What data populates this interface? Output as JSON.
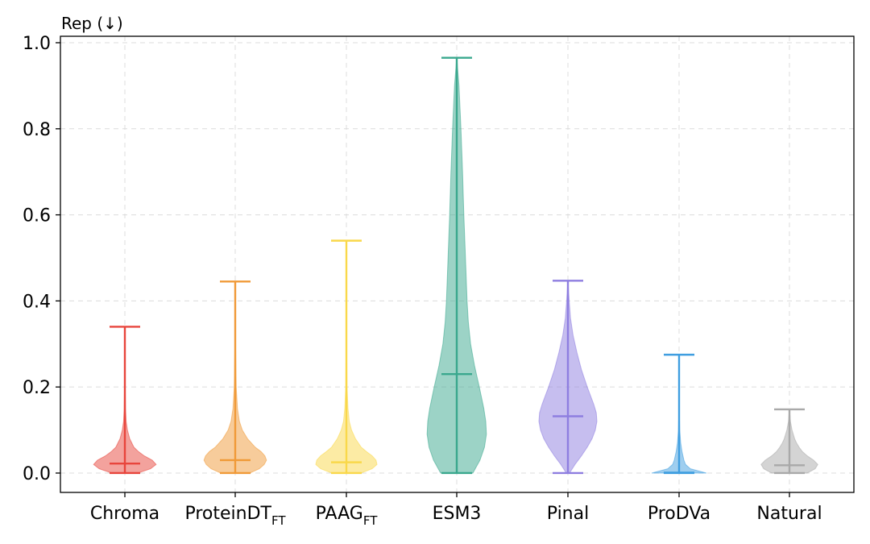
{
  "chart_data": {
    "type": "violin",
    "title": "",
    "ylabel": "Rep (↓)",
    "xlabel": "",
    "ylim": [
      -0.045,
      1.015
    ],
    "yticks": [
      0.0,
      0.2,
      0.4,
      0.6,
      0.8,
      1.0
    ],
    "ytick_labels": [
      "0.0",
      "0.2",
      "0.4",
      "0.6",
      "0.8",
      "1.0"
    ],
    "grid": true,
    "series": [
      {
        "name": "Chroma",
        "label_main": "Chroma",
        "label_sub": "",
        "color": "#e8453c",
        "min": 0.0,
        "max": 0.34,
        "median": 0.022,
        "density": [
          [
            0.0,
            0.4
          ],
          [
            0.01,
            0.8
          ],
          [
            0.02,
            0.97
          ],
          [
            0.03,
            0.85
          ],
          [
            0.04,
            0.6
          ],
          [
            0.05,
            0.42
          ],
          [
            0.06,
            0.28
          ],
          [
            0.08,
            0.15
          ],
          [
            0.1,
            0.08
          ],
          [
            0.12,
            0.04
          ],
          [
            0.15,
            0.02
          ],
          [
            0.2,
            0.01
          ],
          [
            0.34,
            0.0
          ]
        ]
      },
      {
        "name": "ProteinDT_FT",
        "label_main": "ProteinDT",
        "label_sub": "FT",
        "color": "#f09a38",
        "min": 0.0,
        "max": 0.445,
        "median": 0.03,
        "density": [
          [
            0.0,
            0.45
          ],
          [
            0.01,
            0.75
          ],
          [
            0.02,
            0.9
          ],
          [
            0.03,
            0.97
          ],
          [
            0.04,
            0.92
          ],
          [
            0.05,
            0.8
          ],
          [
            0.06,
            0.62
          ],
          [
            0.08,
            0.38
          ],
          [
            0.1,
            0.22
          ],
          [
            0.12,
            0.13
          ],
          [
            0.15,
            0.07
          ],
          [
            0.2,
            0.03
          ],
          [
            0.3,
            0.01
          ],
          [
            0.445,
            0.0
          ]
        ]
      },
      {
        "name": "PAAG_FT",
        "label_main": "PAAG",
        "label_sub": "FT",
        "color": "#f9d84a",
        "min": 0.0,
        "max": 0.54,
        "median": 0.025,
        "density": [
          [
            0.0,
            0.45
          ],
          [
            0.01,
            0.8
          ],
          [
            0.02,
            0.95
          ],
          [
            0.03,
            0.92
          ],
          [
            0.04,
            0.8
          ],
          [
            0.05,
            0.62
          ],
          [
            0.06,
            0.46
          ],
          [
            0.08,
            0.28
          ],
          [
            0.1,
            0.16
          ],
          [
            0.12,
            0.09
          ],
          [
            0.15,
            0.05
          ],
          [
            0.2,
            0.02
          ],
          [
            0.3,
            0.008
          ],
          [
            0.54,
            0.0
          ]
        ]
      },
      {
        "name": "ESM3",
        "label_main": "ESM3",
        "label_sub": "",
        "color": "#3aa88e",
        "min": 0.0,
        "max": 0.965,
        "median": 0.23,
        "density": [
          [
            0.0,
            0.5
          ],
          [
            0.03,
            0.72
          ],
          [
            0.06,
            0.86
          ],
          [
            0.09,
            0.92
          ],
          [
            0.12,
            0.9
          ],
          [
            0.15,
            0.84
          ],
          [
            0.2,
            0.7
          ],
          [
            0.25,
            0.55
          ],
          [
            0.3,
            0.43
          ],
          [
            0.35,
            0.36
          ],
          [
            0.4,
            0.32
          ],
          [
            0.5,
            0.27
          ],
          [
            0.6,
            0.22
          ],
          [
            0.7,
            0.18
          ],
          [
            0.8,
            0.13
          ],
          [
            0.9,
            0.07
          ],
          [
            0.965,
            0.0
          ]
        ]
      },
      {
        "name": "Pinal",
        "label_main": "Pinal",
        "label_sub": "",
        "color": "#8e7ee0",
        "min": 0.0,
        "max": 0.447,
        "median": 0.132,
        "density": [
          [
            0.0,
            0.05
          ],
          [
            0.02,
            0.22
          ],
          [
            0.04,
            0.42
          ],
          [
            0.06,
            0.6
          ],
          [
            0.08,
            0.75
          ],
          [
            0.1,
            0.85
          ],
          [
            0.12,
            0.9
          ],
          [
            0.14,
            0.88
          ],
          [
            0.16,
            0.8
          ],
          [
            0.2,
            0.6
          ],
          [
            0.24,
            0.42
          ],
          [
            0.28,
            0.28
          ],
          [
            0.32,
            0.16
          ],
          [
            0.36,
            0.08
          ],
          [
            0.4,
            0.04
          ],
          [
            0.447,
            0.0
          ]
        ]
      },
      {
        "name": "ProDVa",
        "label_main": "ProDVa",
        "label_sub": "",
        "color": "#3f9ee0",
        "min": 0.0,
        "max": 0.275,
        "median": 0.001,
        "density": [
          [
            0.0,
            0.85
          ],
          [
            0.005,
            0.6
          ],
          [
            0.01,
            0.35
          ],
          [
            0.02,
            0.2
          ],
          [
            0.03,
            0.15
          ],
          [
            0.04,
            0.12
          ],
          [
            0.05,
            0.09
          ],
          [
            0.07,
            0.05
          ],
          [
            0.1,
            0.02
          ],
          [
            0.15,
            0.005
          ],
          [
            0.275,
            0.0
          ]
        ]
      },
      {
        "name": "Natural",
        "label_main": "Natural",
        "label_sub": "",
        "color": "#a9a9a9",
        "min": 0.0,
        "max": 0.148,
        "median": 0.018,
        "density": [
          [
            0.0,
            0.55
          ],
          [
            0.01,
            0.8
          ],
          [
            0.02,
            0.88
          ],
          [
            0.03,
            0.75
          ],
          [
            0.04,
            0.55
          ],
          [
            0.05,
            0.4
          ],
          [
            0.06,
            0.3
          ],
          [
            0.07,
            0.22
          ],
          [
            0.08,
            0.16
          ],
          [
            0.1,
            0.08
          ],
          [
            0.12,
            0.03
          ],
          [
            0.148,
            0.0
          ]
        ]
      }
    ]
  }
}
